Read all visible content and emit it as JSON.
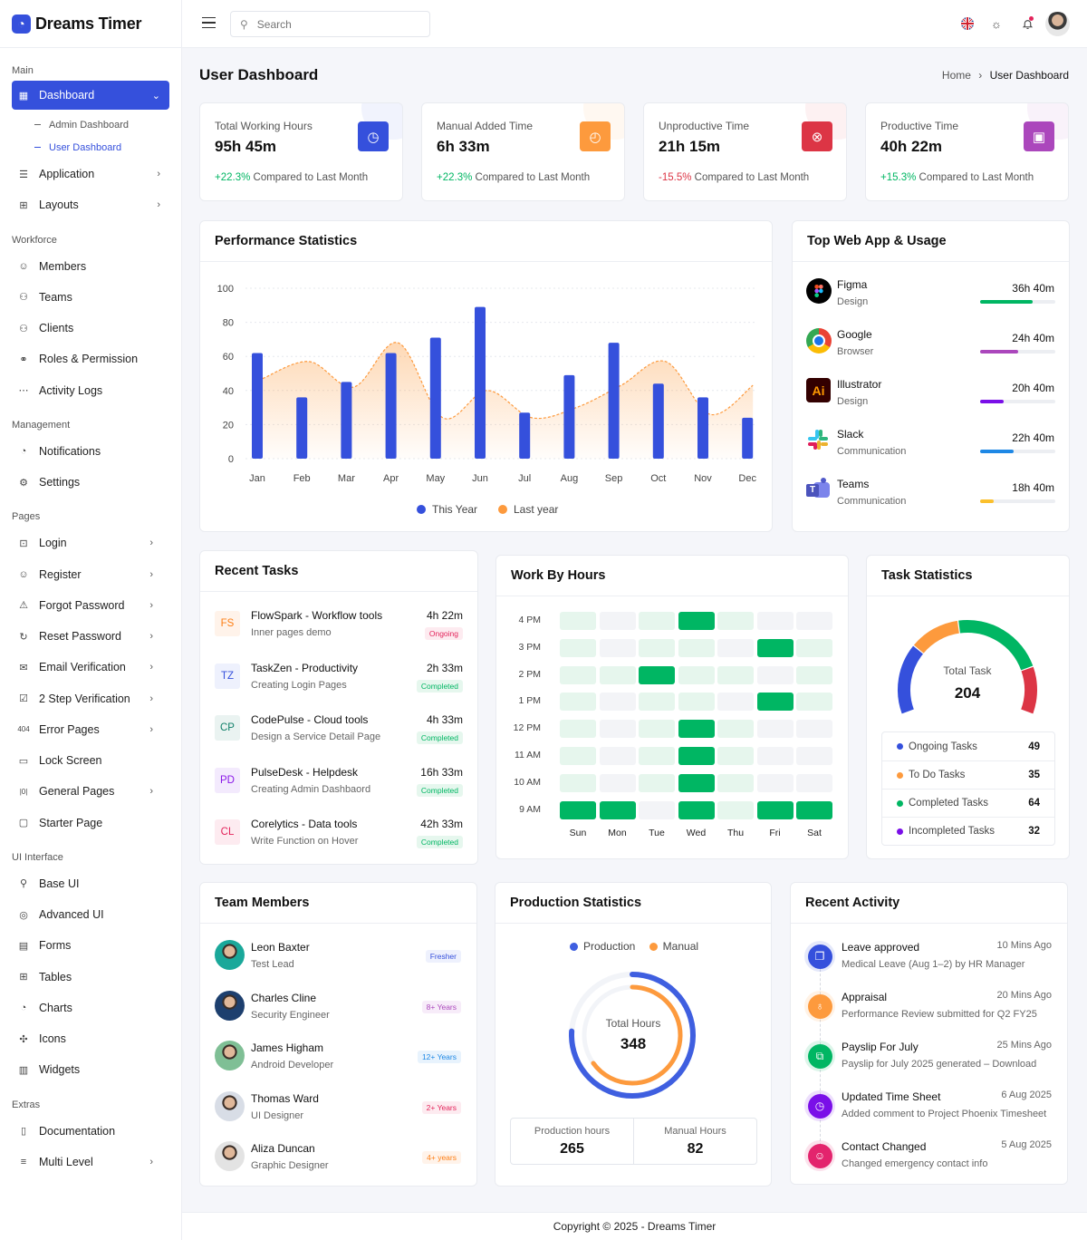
{
  "brand": {
    "name": "Dreams Timer"
  },
  "header": {
    "search_placeholder": "Search"
  },
  "sidebar": {
    "sections": [
      {
        "label": "Main",
        "items": [
          {
            "label": "Dashboard",
            "icon": "dashboard",
            "active": true,
            "chevron": "down",
            "children": [
              {
                "label": "Admin Dashboard",
                "active": false
              },
              {
                "label": "User Dashboard",
                "active": true
              }
            ]
          },
          {
            "label": "Application",
            "icon": "application",
            "chevron": "right"
          },
          {
            "label": "Layouts",
            "icon": "layouts",
            "chevron": "right"
          }
        ]
      },
      {
        "label": "Workforce",
        "items": [
          {
            "label": "Members",
            "icon": "members"
          },
          {
            "label": "Teams",
            "icon": "teams"
          },
          {
            "label": "Clients",
            "icon": "clients"
          },
          {
            "label": "Roles & Permission",
            "icon": "roles"
          },
          {
            "label": "Activity Logs",
            "icon": "activity"
          }
        ]
      },
      {
        "label": "Management",
        "items": [
          {
            "label": "Notifications",
            "icon": "notifications"
          },
          {
            "label": "Settings",
            "icon": "settings"
          }
        ]
      },
      {
        "label": "Pages",
        "items": [
          {
            "label": "Login",
            "icon": "login",
            "chevron": "right"
          },
          {
            "label": "Register",
            "icon": "register",
            "chevron": "right"
          },
          {
            "label": "Forgot Password",
            "icon": "forgot",
            "chevron": "right"
          },
          {
            "label": "Reset Password",
            "icon": "reset",
            "chevron": "right"
          },
          {
            "label": "Email Verification",
            "icon": "email",
            "chevron": "right"
          },
          {
            "label": "2 Step Verification",
            "icon": "twostep",
            "chevron": "right"
          },
          {
            "label": "Error Pages",
            "icon": "error",
            "chevron": "right"
          },
          {
            "label": "Lock Screen",
            "icon": "lock"
          },
          {
            "label": "General Pages",
            "icon": "general",
            "chevron": "right"
          },
          {
            "label": "Starter Page",
            "icon": "starter"
          }
        ]
      },
      {
        "label": "UI Interface",
        "items": [
          {
            "label": "Base UI",
            "icon": "baseui"
          },
          {
            "label": "Advanced UI",
            "icon": "advanced"
          },
          {
            "label": "Forms",
            "icon": "forms"
          },
          {
            "label": "Tables",
            "icon": "tables"
          },
          {
            "label": "Charts",
            "icon": "charts"
          },
          {
            "label": "Icons",
            "icon": "icons"
          },
          {
            "label": "Widgets",
            "icon": "widgets"
          }
        ]
      },
      {
        "label": "Extras",
        "items": [
          {
            "label": "Documentation",
            "icon": "documentation"
          },
          {
            "label": "Multi Level",
            "icon": "multilevel",
            "chevron": "right"
          }
        ]
      }
    ]
  },
  "page": {
    "title": "User Dashboard",
    "breadcrumb": [
      "Home",
      "User Dashboard"
    ]
  },
  "stats": [
    {
      "label": "Total Working Hours",
      "value": "95h 45m",
      "change": "+22.3%",
      "trend": "up",
      "suffix": "Compared to Last Month",
      "color": "#3550dc",
      "icon": "clock-arrow-icon"
    },
    {
      "label": "Manual Added Time",
      "value": "6h 33m",
      "change": "+22.3%",
      "trend": "up",
      "suffix": "Compared to Last Month",
      "color": "#fd9a3d",
      "icon": "clock-plus-icon"
    },
    {
      "label": "Unproductive Time",
      "value": "21h 15m",
      "change": "-15.5%",
      "trend": "down",
      "suffix": "Compared to Last Month",
      "color": "#dc3545",
      "icon": "clock-x-icon"
    },
    {
      "label": "Productive Time",
      "value": "40h 22m",
      "change": "+15.3%",
      "trend": "up",
      "suffix": "Compared to Last Month",
      "color": "#ab47bc",
      "icon": "briefcase-icon"
    }
  ],
  "performance": {
    "title": "Performance Statistics"
  },
  "chart_data": {
    "type": "bar",
    "title": "Performance Statistics",
    "categories": [
      "Jan",
      "Feb",
      "Mar",
      "Apr",
      "May",
      "Jun",
      "Jul",
      "Aug",
      "Sep",
      "Oct",
      "Nov",
      "Dec"
    ],
    "series": [
      {
        "name": "This Year",
        "type": "bar",
        "color": "#3550dc",
        "values": [
          62,
          36,
          45,
          62,
          71,
          89,
          27,
          49,
          68,
          44,
          36,
          24
        ]
      },
      {
        "name": "Last year",
        "type": "area",
        "color": "#fd9a3d",
        "values": [
          47,
          57,
          42,
          68,
          24,
          40,
          24,
          30,
          43,
          57,
          26,
          43
        ]
      }
    ],
    "yticks": [
      0,
      20,
      40,
      60,
      80,
      100
    ],
    "ylim": [
      0,
      100
    ],
    "grid": true,
    "legend": "bottom"
  },
  "web_apps": {
    "title": "Top Web App & Usage",
    "items": [
      {
        "name": "Figma",
        "category": "Design",
        "time": "36h 40m",
        "progress": 0.7,
        "color": "#00b663",
        "icon": "figma"
      },
      {
        "name": "Google",
        "category": "Browser",
        "time": "24h 40m",
        "progress": 0.5,
        "color": "#ab47bc",
        "icon": "chrome"
      },
      {
        "name": "Illustrator",
        "category": "Design",
        "time": "20h 40m",
        "progress": 0.31,
        "color": "#7a0fe8",
        "icon": "illustrator",
        "icon_text": "Ai"
      },
      {
        "name": "Slack",
        "category": "Communication",
        "time": "22h 40m",
        "progress": 0.45,
        "color": "#1e88e5",
        "icon": "slack"
      },
      {
        "name": "Teams",
        "category": "Communication",
        "time": "18h 40m",
        "progress": 0.18,
        "color": "#fbc02d",
        "icon": "teams",
        "icon_text": "T"
      }
    ]
  },
  "recent_tasks": {
    "title": "Recent Tasks",
    "items": [
      {
        "initials": "FS",
        "name": "FlowSpark - Workflow tools",
        "desc": "Inner pages demo",
        "time": "4h 22m",
        "status": "Ongoing",
        "fg": "#fd7e14",
        "bg": "#fff3ea"
      },
      {
        "initials": "TZ",
        "name": "TaskZen - Productivity",
        "desc": "Creating Login Pages",
        "time": "2h 33m",
        "status": "Completed",
        "fg": "#3550dc",
        "bg": "#eef1fd"
      },
      {
        "initials": "CP",
        "name": "CodePulse - Cloud tools",
        "desc": "Design a Service Detail Page",
        "time": "4h 33m",
        "status": "Completed",
        "fg": "#11806a",
        "bg": "#eaf3f1"
      },
      {
        "initials": "PD",
        "name": "PulseDesk - Helpdesk",
        "desc": "Creating Admin Dashbaord",
        "time": "16h 33m",
        "status": "Completed",
        "fg": "#8a17e8",
        "bg": "#f3eafd"
      },
      {
        "initials": "CL",
        "name": "Corelytics - Data tools",
        "desc": "Write Function on Hover",
        "time": "42h 33m",
        "status": "Completed",
        "fg": "#e3245b",
        "bg": "#fdebf0"
      }
    ]
  },
  "work_hours": {
    "title": "Work By Hours",
    "hours": [
      "4 PM",
      "3 PM",
      "2 PM",
      "1 PM",
      "12 PM",
      "11 AM",
      "10 AM",
      "9 AM"
    ],
    "days": [
      "Sun",
      "Mon",
      "Tue",
      "Wed",
      "Thu",
      "Fri",
      "Sat"
    ],
    "levels": [
      [
        1,
        0,
        1,
        2,
        1,
        0,
        0
      ],
      [
        1,
        0,
        1,
        1,
        0,
        2,
        1
      ],
      [
        1,
        1,
        2,
        1,
        1,
        0,
        1
      ],
      [
        1,
        0,
        1,
        1,
        0,
        2,
        1
      ],
      [
        1,
        0,
        1,
        2,
        1,
        0,
        0
      ],
      [
        1,
        0,
        1,
        2,
        1,
        0,
        0
      ],
      [
        1,
        0,
        1,
        2,
        1,
        0,
        0
      ],
      [
        2,
        2,
        0,
        2,
        1,
        2,
        2
      ]
    ]
  },
  "task_stats": {
    "title": "Task Statistics",
    "total_label": "Total Task",
    "total": "204",
    "gauge_colors": [
      "#3550dc",
      "#fd9a3d",
      "#00b663",
      "#dc3545"
    ],
    "items": [
      {
        "label": "Ongoing Tasks",
        "value": 49,
        "color": "#3550dc"
      },
      {
        "label": "To Do Tasks",
        "value": 35,
        "color": "#fd9a3d"
      },
      {
        "label": "Completed Tasks",
        "value": 64,
        "color": "#00b663"
      },
      {
        "label": "Incompleted Tasks",
        "value": 32,
        "color": "#7a0fe8"
      }
    ]
  },
  "team": {
    "title": "Team Members",
    "members": [
      {
        "name": "Leon Baxter",
        "role": "Test Lead",
        "badge": "Fresher",
        "fg": "#3550dc",
        "bg": "#eef1fd",
        "avatar": "#1aa89a"
      },
      {
        "name": "Charles Cline",
        "role": "Security Engineer",
        "badge": "8+ Years",
        "fg": "#ab47bc",
        "bg": "#f7ecf9",
        "avatar": "#1d3f6e"
      },
      {
        "name": "James Higham",
        "role": "Android Developer",
        "badge": "12+ Years",
        "fg": "#1e88e5",
        "bg": "#e8f3fd",
        "avatar": "#7fbf95"
      },
      {
        "name": "Thomas Ward",
        "role": "UI Designer",
        "badge": "2+ Years",
        "fg": "#e3245b",
        "bg": "#fdebf0",
        "avatar": "#d8dde6"
      },
      {
        "name": "Aliza Duncan",
        "role": "Graphic Designer",
        "badge": "4+ years",
        "fg": "#fd7e14",
        "bg": "#fff3ea",
        "avatar": "#e3e3e3"
      }
    ]
  },
  "production": {
    "title": "Production Statistics",
    "legend": [
      {
        "label": "Production",
        "color": "#3f5fe0"
      },
      {
        "label": "Manual",
        "color": "#fd9a3d"
      }
    ],
    "total_label": "Total Hours",
    "total": "348",
    "production_fill": 0.76,
    "manual_fill": 0.65,
    "boxes": [
      {
        "label": "Production hours",
        "value": "265"
      },
      {
        "label": "Manual Hours",
        "value": "82"
      }
    ]
  },
  "activity": {
    "title": "Recent Activity",
    "items": [
      {
        "title": "Leave approved",
        "desc": "Medical Leave (Aug 1–2) by HR Manager",
        "time": "10 Mins Ago",
        "color": "#3550dc",
        "icon": "documents"
      },
      {
        "title": "Appraisal",
        "desc": "Performance Review submitted for Q2 FY25",
        "time": "20 Mins Ago",
        "color": "#fd9a3d",
        "icon": "money-bag"
      },
      {
        "title": "Payslip For July",
        "desc": "Payslip for July 2025 generated – Download",
        "time": "25 Mins Ago",
        "color": "#00b663",
        "icon": "payslip"
      },
      {
        "title": "Updated Time Sheet",
        "desc": "Added comment to Project Phoenix Timesheet",
        "time": "6 Aug 2025",
        "color": "#7a0fe8",
        "icon": "clock"
      },
      {
        "title": "Contact Changed",
        "desc": "Changed emergency contact info",
        "time": "5 Aug 2025",
        "color": "#e3246d",
        "icon": "user-edit"
      }
    ]
  },
  "footer": {
    "text": "Copyright © 2025 - Dreams Timer"
  }
}
